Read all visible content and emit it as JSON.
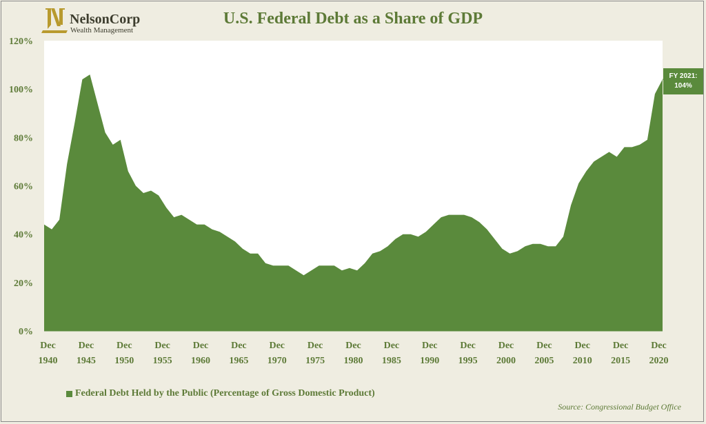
{
  "logo": {
    "name": "NelsonCorp",
    "subtitle": "Wealth Management"
  },
  "title": "U.S. Federal Debt as a Share of GDP",
  "legend": "Federal Debt Held by the Public (Percentage of Gross Domestic Product)",
  "source": "Source: Congressional Budget Office",
  "callout": {
    "line1": "FY 2021:",
    "line2": "104%"
  },
  "colors": {
    "area": "#5a8a3c",
    "text": "#5d7a37",
    "background": "#efede1"
  },
  "chart_data": {
    "type": "area",
    "title": "U.S. Federal Debt as a Share of GDP",
    "xlabel": "",
    "ylabel": "",
    "ylim": [
      0,
      120
    ],
    "xlim": [
      1940,
      2021
    ],
    "yticks": [
      "0%",
      "20%",
      "40%",
      "60%",
      "80%",
      "100%",
      "120%"
    ],
    "xticks": [
      {
        "top": "Dec",
        "bottom": "1940"
      },
      {
        "top": "Dec",
        "bottom": "1945"
      },
      {
        "top": "Dec",
        "bottom": "1950"
      },
      {
        "top": "Dec",
        "bottom": "1955"
      },
      {
        "top": "Dec",
        "bottom": "1960"
      },
      {
        "top": "Dec",
        "bottom": "1965"
      },
      {
        "top": "Dec",
        "bottom": "1970"
      },
      {
        "top": "Dec",
        "bottom": "1975"
      },
      {
        "top": "Dec",
        "bottom": "1980"
      },
      {
        "top": "Dec",
        "bottom": "1985"
      },
      {
        "top": "Dec",
        "bottom": "1990"
      },
      {
        "top": "Dec",
        "bottom": "1995"
      },
      {
        "top": "Dec",
        "bottom": "2000"
      },
      {
        "top": "Dec",
        "bottom": "2005"
      },
      {
        "top": "Dec",
        "bottom": "2010"
      },
      {
        "top": "Dec",
        "bottom": "2015"
      },
      {
        "top": "Dec",
        "bottom": "2020"
      }
    ],
    "series": [
      {
        "name": "Federal Debt Held by the Public (Percentage of Gross Domestic Product)",
        "x": [
          1940,
          1941,
          1942,
          1943,
          1944,
          1945,
          1946,
          1947,
          1948,
          1949,
          1950,
          1951,
          1952,
          1953,
          1954,
          1955,
          1956,
          1957,
          1958,
          1959,
          1960,
          1961,
          1962,
          1963,
          1964,
          1965,
          1966,
          1967,
          1968,
          1969,
          1970,
          1971,
          1972,
          1973,
          1974,
          1975,
          1976,
          1977,
          1978,
          1979,
          1980,
          1981,
          1982,
          1983,
          1984,
          1985,
          1986,
          1987,
          1988,
          1989,
          1990,
          1991,
          1992,
          1993,
          1994,
          1995,
          1996,
          1997,
          1998,
          1999,
          2000,
          2001,
          2002,
          2003,
          2004,
          2005,
          2006,
          2007,
          2008,
          2009,
          2010,
          2011,
          2012,
          2013,
          2014,
          2015,
          2016,
          2017,
          2018,
          2019,
          2020,
          2021
        ],
        "values": [
          44,
          42,
          46,
          69,
          86,
          104,
          106,
          94,
          82,
          77,
          79,
          66,
          60,
          57,
          58,
          56,
          51,
          47,
          48,
          46,
          44,
          44,
          42,
          41,
          39,
          37,
          34,
          32,
          32,
          28,
          27,
          27,
          27,
          25,
          23,
          25,
          27,
          27,
          27,
          25,
          26,
          25,
          28,
          32,
          33,
          35,
          38,
          40,
          40,
          39,
          41,
          44,
          47,
          48,
          48,
          48,
          47,
          45,
          42,
          38,
          34,
          32,
          33,
          35,
          36,
          36,
          35,
          35,
          39,
          52,
          61,
          66,
          70,
          72,
          74,
          72,
          76,
          76,
          77,
          79,
          98,
          104
        ]
      }
    ],
    "annotations": [
      "FY 2021:",
      "104%"
    ]
  }
}
